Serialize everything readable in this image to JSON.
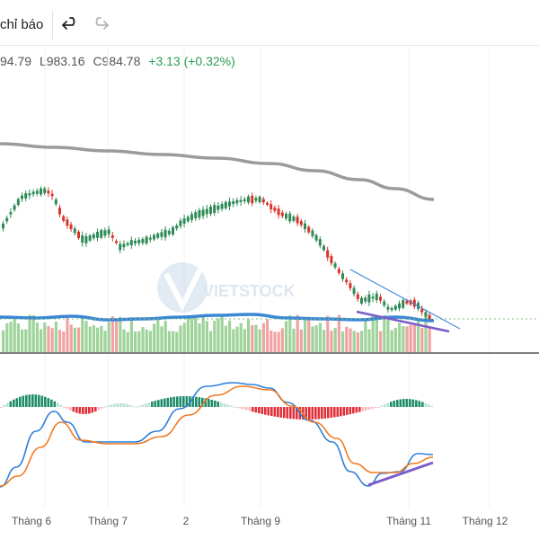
{
  "toolbar": {
    "indicators_label": "chỉ báo",
    "undo_icon": "undo-icon",
    "redo_icon": "redo-icon"
  },
  "legend": {
    "high": "94.79",
    "low": "L983.16",
    "close": "C984.78",
    "change": "+3.13 (+0.32%)"
  },
  "watermark": "VIETSTOCK",
  "x_axis": [
    "Tháng 6",
    "Tháng 7",
    "2",
    "Tháng 9",
    "Tháng 11",
    "Tháng 12"
  ],
  "colors": {
    "up": "#2e8b57",
    "down": "#d9342b",
    "vol_up": "#9ed39a",
    "vol_down": "#f0a3a3",
    "ma_long": "#9b9b9b",
    "vol_ma": "#3a86d6",
    "macd": "#2f7fd8",
    "signal": "#f07a22",
    "trend": "#7b5cc9"
  },
  "chart_data": {
    "type": "candlestick",
    "note_series": [
      "price candles",
      "long moving average",
      "volume",
      "volume MA",
      "MACD",
      "signal",
      "histogram"
    ]
  }
}
